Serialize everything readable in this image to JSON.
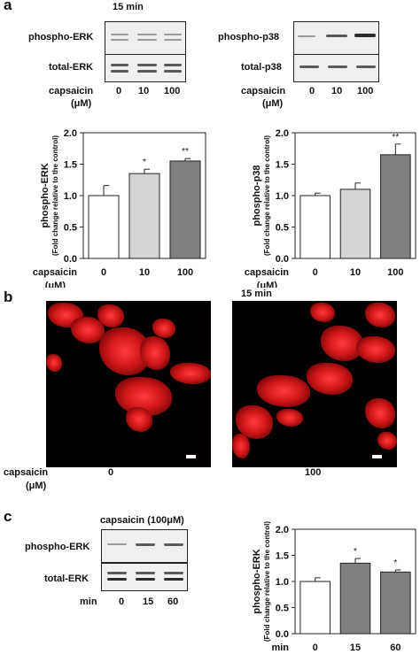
{
  "panel_a": {
    "letter": "a",
    "time_label": "15 min",
    "blot_left": {
      "top_label": "phospho-ERK",
      "bottom_label": "total-ERK"
    },
    "blot_right": {
      "top_label": "phospho-p38",
      "bottom_label": "total-p38"
    },
    "dose_label": "capsaicin",
    "dose_unit": "(μM)",
    "doses": [
      "0",
      "10",
      "100"
    ]
  },
  "panel_b": {
    "letter": "b",
    "time_label": "15 min",
    "dose_label": "capsaicin",
    "dose_unit": "(μM)",
    "doses": [
      "0",
      "100"
    ]
  },
  "panel_c": {
    "letter": "c",
    "treatment_label": "capsaicin (100μM)",
    "blot": {
      "top_label": "phospho-ERK",
      "bottom_label": "total-ERK"
    },
    "time_row_label": "min",
    "times": [
      "0",
      "15",
      "60"
    ]
  },
  "colors": {
    "white_bar": "#ffffff",
    "light_bar": "#d4d4d4",
    "dark_bar": "#808080",
    "fluor_red": "#e02020"
  },
  "chart_data": [
    {
      "type": "bar",
      "ylabel": "phospho-ERK",
      "ylabel2": "(Fold change relative to the control)",
      "xlabel": "capsaicin",
      "xunit": "(μM)",
      "categories": [
        "0",
        "10",
        "100"
      ],
      "values": [
        1.0,
        1.35,
        1.55
      ],
      "errors": [
        0.16,
        0.07,
        0.04
      ],
      "annotations": [
        "",
        "*",
        "**"
      ],
      "bar_colors": [
        "#ffffff",
        "#d4d4d4",
        "#808080"
      ],
      "ylim": [
        0,
        2.0
      ],
      "yticks": [
        "0.0",
        "0.5",
        "1.0",
        "1.5",
        "2.0"
      ]
    },
    {
      "type": "bar",
      "ylabel": "phospho-p38",
      "ylabel2": "(Fold change relative to the control)",
      "xlabel": "capsaicin",
      "xunit": "(μM)",
      "categories": [
        "0",
        "10",
        "100"
      ],
      "values": [
        1.0,
        1.1,
        1.65
      ],
      "errors": [
        0.04,
        0.1,
        0.17
      ],
      "annotations": [
        "",
        "",
        "**"
      ],
      "bar_colors": [
        "#ffffff",
        "#d4d4d4",
        "#808080"
      ],
      "ylim": [
        0,
        2.0
      ],
      "yticks": [
        "0.0",
        "0.5",
        "1.0",
        "1.5",
        "2.0"
      ]
    },
    {
      "type": "bar",
      "ylabel": "phospho-ERK",
      "ylabel2": "(Fold change relative to the control)",
      "xlabel": "min",
      "xunit": "",
      "categories": [
        "0",
        "15",
        "60"
      ],
      "values": [
        1.0,
        1.35,
        1.18
      ],
      "errors": [
        0.07,
        0.09,
        0.04
      ],
      "annotations": [
        "",
        "*",
        "*"
      ],
      "bar_colors": [
        "#ffffff",
        "#808080",
        "#808080"
      ],
      "ylim": [
        0,
        2.0
      ],
      "yticks": [
        "0.0",
        "0.5",
        "1.0",
        "1.5",
        "2.0"
      ]
    }
  ]
}
